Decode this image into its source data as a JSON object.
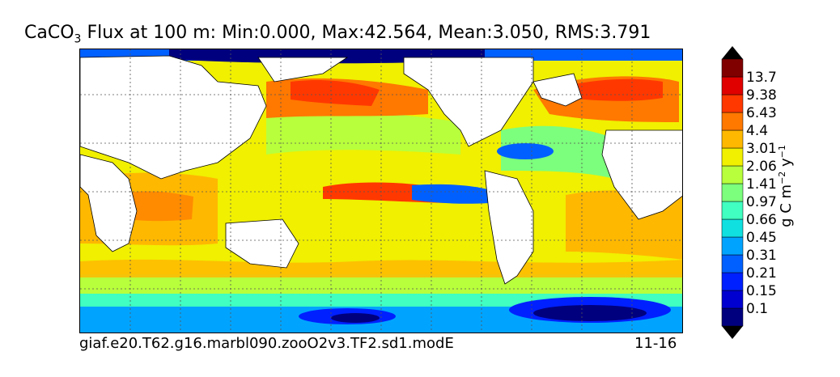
{
  "title": {
    "prefix": "CaCO",
    "subscript": "3",
    "suffix": " Flux at 100 m: Min:0.000, Max:42.564, Mean:3.050, RMS:3.791"
  },
  "footer": {
    "case_name": "giaf.e20.T62.g16.marbl090.zooO2v3.TF2.sd1.modE",
    "years": "11-16"
  },
  "colorbar": {
    "label": {
      "base": "g C m",
      "exp1": "−2",
      "mid": " y",
      "exp2": "−1"
    },
    "ticks": [
      "0.1",
      "0.15",
      "0.21",
      "0.31",
      "0.45",
      "0.66",
      "0.97",
      "1.41",
      "2.06",
      "3.01",
      "4.4",
      "6.43",
      "9.38",
      "13.7"
    ],
    "colors": [
      "#00007f",
      "#0000d0",
      "#0020ff",
      "#0060ff",
      "#00a4ff",
      "#10e0e0",
      "#40ffc0",
      "#7cff7c",
      "#b8ff3c",
      "#f0f000",
      "#ffb800",
      "#ff7800",
      "#ff3800",
      "#e00000",
      "#800000"
    ]
  }
}
